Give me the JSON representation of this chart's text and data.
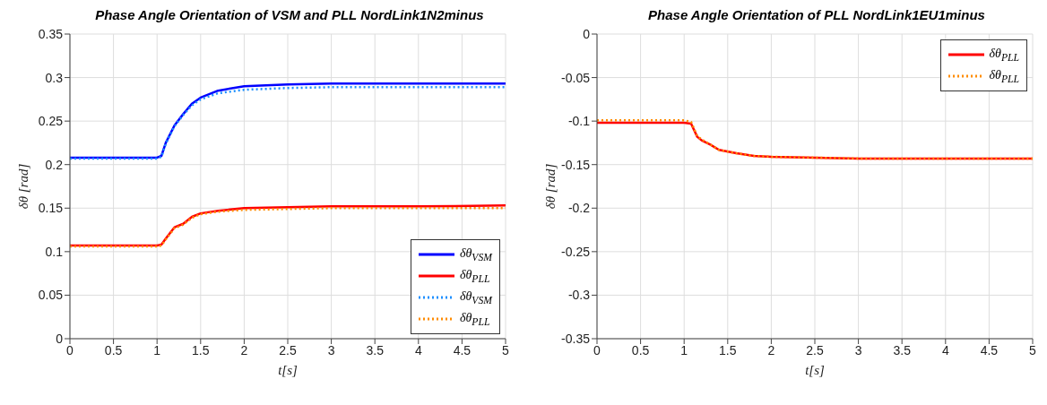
{
  "chart_data": [
    {
      "type": "line",
      "title": "Phase Angle Orientation of VSM and PLL NordLink1N2minus",
      "xlabel": "t[s]",
      "ylabel": "δθ [rad]",
      "xlim": [
        0,
        5
      ],
      "xticks": [
        0,
        0.5,
        1,
        1.5,
        2,
        2.5,
        3,
        3.5,
        4,
        4.5,
        5
      ],
      "ylim": [
        0,
        0.35
      ],
      "yticks": [
        0,
        0.05,
        0.1,
        0.15,
        0.2,
        0.25,
        0.3,
        0.35
      ],
      "grid": true,
      "legend": "bottom right",
      "series": [
        {
          "name": "δθ$_{VSM}$",
          "color": "#0000ff",
          "line_style": "solid",
          "x": [
            0,
            0.5,
            1,
            1.05,
            1.1,
            1.2,
            1.3,
            1.4,
            1.5,
            1.7,
            2,
            2.5,
            3,
            4,
            5
          ],
          "values": [
            0.208,
            0.208,
            0.208,
            0.21,
            0.225,
            0.245,
            0.258,
            0.27,
            0.277,
            0.285,
            0.29,
            0.292,
            0.293,
            0.293,
            0.293
          ]
        },
        {
          "name": "δθ$_{PLL}$",
          "color": "#ff0000",
          "line_style": "solid",
          "x": [
            0,
            0.5,
            1,
            1.05,
            1.1,
            1.2,
            1.3,
            1.4,
            1.5,
            1.7,
            2,
            2.5,
            3,
            4,
            5
          ],
          "values": [
            0.107,
            0.107,
            0.107,
            0.108,
            0.115,
            0.128,
            0.132,
            0.14,
            0.144,
            0.147,
            0.15,
            0.151,
            0.152,
            0.152,
            0.153
          ]
        },
        {
          "name": "δθ$_{VSM}$",
          "color": "#1e90ff",
          "line_style": "dotted",
          "x": [
            0,
            0.5,
            1,
            1.05,
            1.1,
            1.2,
            1.3,
            1.4,
            1.5,
            1.7,
            2,
            2.5,
            3,
            4,
            5
          ],
          "values": [
            0.207,
            0.207,
            0.207,
            0.209,
            0.224,
            0.244,
            0.257,
            0.268,
            0.275,
            0.282,
            0.286,
            0.288,
            0.289,
            0.289,
            0.289
          ]
        },
        {
          "name": "δθ$_{PLL}$",
          "color": "#ff8c00",
          "line_style": "dotted",
          "x": [
            0,
            0.5,
            1,
            1.05,
            1.1,
            1.2,
            1.3,
            1.4,
            1.5,
            1.7,
            2,
            2.5,
            3,
            4,
            5
          ],
          "values": [
            0.106,
            0.106,
            0.106,
            0.107,
            0.114,
            0.127,
            0.131,
            0.139,
            0.143,
            0.146,
            0.148,
            0.149,
            0.15,
            0.15,
            0.15
          ]
        }
      ]
    },
    {
      "type": "line",
      "title": "Phase Angle Orientation of PLL NordLink1EU1minus",
      "xlabel": "t[s]",
      "ylabel": "δθ [rad]",
      "xlim": [
        0,
        5
      ],
      "xticks": [
        0,
        0.5,
        1,
        1.5,
        2,
        2.5,
        3,
        3.5,
        4,
        4.5,
        5
      ],
      "ylim": [
        -0.35,
        0
      ],
      "yticks": [
        -0.35,
        -0.3,
        -0.25,
        -0.2,
        -0.15,
        -0.1,
        -0.05,
        0
      ],
      "grid": true,
      "legend": "top right",
      "series": [
        {
          "name": "δθ$_{PLL}$",
          "color": "#ff0000",
          "line_style": "solid",
          "x": [
            0,
            0.5,
            1,
            1.08,
            1.15,
            1.2,
            1.3,
            1.4,
            1.6,
            1.8,
            2,
            2.5,
            3,
            4,
            5
          ],
          "values": [
            -0.102,
            -0.102,
            -0.102,
            -0.103,
            -0.118,
            -0.122,
            -0.127,
            -0.133,
            -0.137,
            -0.14,
            -0.141,
            -0.142,
            -0.143,
            -0.143,
            -0.143
          ]
        },
        {
          "name": "δθ$_{PLL}$",
          "color": "#ff8c00",
          "line_style": "dotted",
          "x": [
            0,
            0.5,
            1,
            1.08,
            1.15,
            1.2,
            1.3,
            1.4,
            1.6,
            1.8,
            2,
            2.5,
            3,
            4,
            5
          ],
          "values": [
            -0.099,
            -0.099,
            -0.099,
            -0.101,
            -0.117,
            -0.121,
            -0.127,
            -0.133,
            -0.137,
            -0.14,
            -0.141,
            -0.142,
            -0.143,
            -0.143,
            -0.143
          ]
        }
      ]
    }
  ]
}
